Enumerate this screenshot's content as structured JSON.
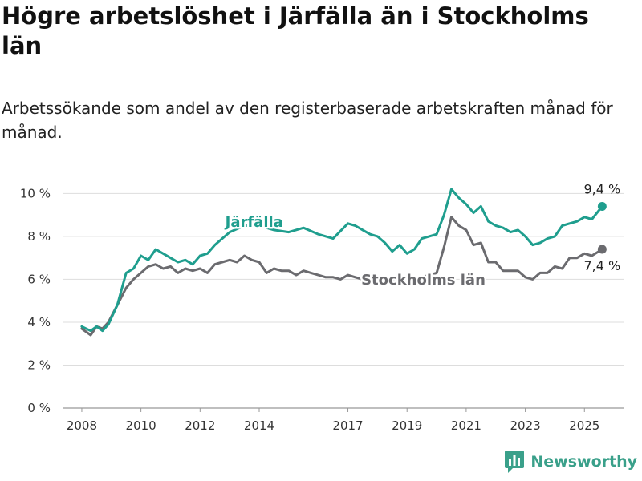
{
  "header": {
    "title": "Högre arbetslöshet i Järfälla än i Stockholms län",
    "subtitle": "Arbetssökande som andel av den registerbaserade arbetskraften månad för månad."
  },
  "branding": {
    "name": "Newsworthy",
    "icon": "bar-chart-logo-icon",
    "color": "#3aa08a"
  },
  "chart_data": {
    "type": "line",
    "title": "Högre arbetslöshet i Järfälla än i Stockholms län",
    "subtitle": "Arbetssökande som andel av den registerbaserade arbetskraften månad för månad.",
    "xlabel": "",
    "ylabel": "",
    "x_ticks": [
      {
        "value": 2008.0,
        "label": "2008"
      },
      {
        "value": 2010.0,
        "label": "2010"
      },
      {
        "value": 2012.0,
        "label": "2012"
      },
      {
        "value": 2014.0,
        "label": "2014"
      },
      {
        "value": 2017.0,
        "label": "2017"
      },
      {
        "value": 2019.0,
        "label": "2019"
      },
      {
        "value": 2021.0,
        "label": "2021"
      },
      {
        "value": 2023.0,
        "label": "2023"
      },
      {
        "value": 2025.0,
        "label": "2025"
      }
    ],
    "y_ticks": [
      {
        "value": 0,
        "label": "0 %"
      },
      {
        "value": 2,
        "label": "2 %"
      },
      {
        "value": 4,
        "label": "4 %"
      },
      {
        "value": 6,
        "label": "6 %"
      },
      {
        "value": 8,
        "label": "8 %"
      },
      {
        "value": 10,
        "label": "10 %"
      }
    ],
    "ylim": [
      0,
      10.5
    ],
    "grid": true,
    "series": [
      {
        "name": "Järfälla",
        "color": "#1f9e8e",
        "end_label": "9,4 %",
        "x": [
          2008.0,
          2008.3,
          2008.5,
          2008.7,
          2008.9,
          2009.2,
          2009.5,
          2009.75,
          2010.0,
          2010.25,
          2010.5,
          2010.75,
          2011.0,
          2011.25,
          2011.5,
          2011.75,
          2012.0,
          2012.25,
          2012.5,
          2012.75,
          2013.0,
          2013.5,
          2014.0,
          2014.5,
          2015.0,
          2015.5,
          2016.0,
          2016.5,
          2017.0,
          2017.25,
          2017.5,
          2017.75,
          2018.0,
          2018.25,
          2018.5,
          2018.75,
          2019.0,
          2019.25,
          2019.5,
          2019.75,
          2020.0,
          2020.25,
          2020.5,
          2020.75,
          2021.0,
          2021.25,
          2021.5,
          2021.75,
          2022.0,
          2022.25,
          2022.5,
          2022.75,
          2023.0,
          2023.25,
          2023.5,
          2023.75,
          2024.0,
          2024.25,
          2024.5,
          2024.75,
          2025.0,
          2025.25,
          2025.6
        ],
        "y": [
          3.8,
          3.6,
          3.8,
          3.6,
          3.9,
          4.8,
          6.3,
          6.5,
          7.1,
          6.9,
          7.4,
          7.2,
          7.0,
          6.8,
          6.9,
          6.7,
          7.1,
          7.2,
          7.6,
          7.9,
          8.2,
          8.5,
          8.5,
          8.3,
          8.2,
          8.4,
          8.1,
          7.9,
          8.6,
          8.5,
          8.3,
          8.1,
          8.0,
          7.7,
          7.3,
          7.6,
          7.2,
          7.4,
          7.9,
          8.0,
          8.1,
          9.0,
          10.2,
          9.8,
          9.5,
          9.1,
          9.4,
          8.7,
          8.5,
          8.4,
          8.2,
          8.3,
          8.0,
          7.6,
          7.7,
          7.9,
          8.0,
          8.5,
          8.6,
          8.7,
          8.9,
          8.8,
          9.4
        ]
      },
      {
        "name": "Stockholms län",
        "color": "#6b6b6f",
        "end_label": "7,4 %",
        "x": [
          2008.0,
          2008.3,
          2008.5,
          2008.7,
          2008.9,
          2009.2,
          2009.5,
          2009.75,
          2010.0,
          2010.25,
          2010.5,
          2010.75,
          2011.0,
          2011.25,
          2011.5,
          2011.75,
          2012.0,
          2012.25,
          2012.5,
          2012.75,
          2013.0,
          2013.25,
          2013.5,
          2013.75,
          2014.0,
          2014.25,
          2014.5,
          2014.75,
          2015.0,
          2015.25,
          2015.5,
          2015.75,
          2016.0,
          2016.25,
          2016.5,
          2016.75,
          2017.0,
          2017.25,
          2017.5,
          2017.75,
          2018.0,
          2018.25,
          2018.5,
          2018.75,
          2019.0,
          2019.25,
          2019.5,
          2019.75,
          2020.0,
          2020.25,
          2020.5,
          2020.75,
          2021.0,
          2021.25,
          2021.5,
          2021.75,
          2022.0,
          2022.25,
          2022.5,
          2022.75,
          2023.0,
          2023.25,
          2023.5,
          2023.75,
          2024.0,
          2024.25,
          2024.5,
          2024.75,
          2025.0,
          2025.25,
          2025.6
        ],
        "y": [
          3.7,
          3.4,
          3.8,
          3.7,
          4.0,
          4.8,
          5.6,
          6.0,
          6.3,
          6.6,
          6.7,
          6.5,
          6.6,
          6.3,
          6.5,
          6.4,
          6.5,
          6.3,
          6.7,
          6.8,
          6.9,
          6.8,
          7.1,
          6.9,
          6.8,
          6.3,
          6.5,
          6.4,
          6.4,
          6.2,
          6.4,
          6.3,
          6.2,
          6.1,
          6.1,
          6.0,
          6.2,
          6.1,
          6.0,
          5.9,
          6.0,
          5.9,
          6.0,
          5.8,
          5.9,
          6.0,
          6.1,
          6.2,
          6.3,
          7.5,
          8.9,
          8.5,
          8.3,
          7.6,
          7.7,
          6.8,
          6.8,
          6.4,
          6.4,
          6.4,
          6.1,
          6.0,
          6.3,
          6.3,
          6.6,
          6.5,
          7.0,
          7.0,
          7.2,
          7.1,
          7.4
        ]
      }
    ]
  }
}
